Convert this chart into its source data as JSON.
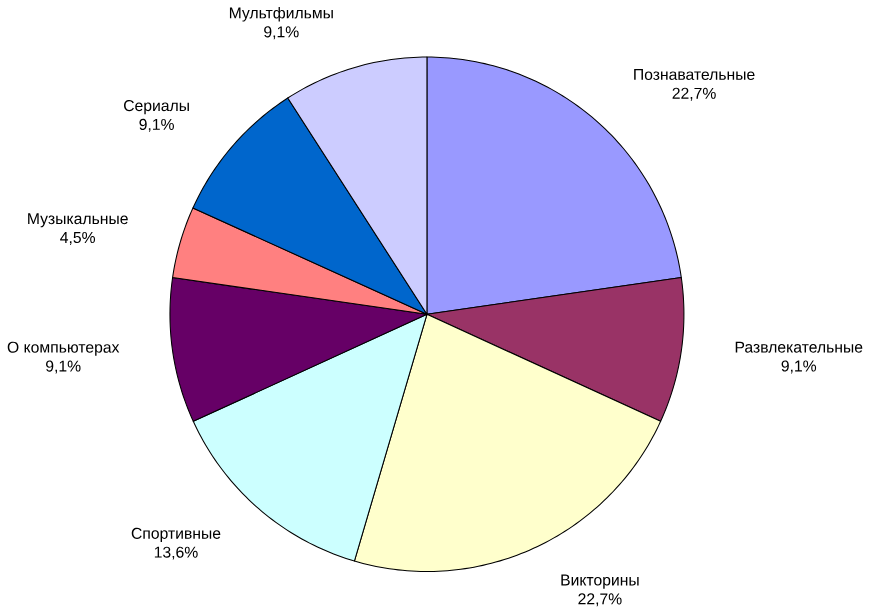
{
  "chart_data": {
    "type": "pie",
    "categories": [
      "Познавательные",
      "Развлекательные",
      "Викторины",
      "Спортивные",
      "О компьютерах",
      "Музыкальные",
      "Сериалы",
      "Мультфильмы"
    ],
    "values": [
      22.7,
      9.1,
      22.7,
      13.6,
      9.1,
      4.5,
      9.1,
      9.1
    ],
    "value_labels": [
      "22,7%",
      "9,1%",
      "22,7%",
      "13,6%",
      "9,1%",
      "4,5%",
      "9,1%",
      "9,1%"
    ],
    "colors": [
      "#9999ff",
      "#993366",
      "#ffffcc",
      "#ccffff",
      "#660066",
      "#ff8080",
      "#0066cc",
      "#ccccff"
    ]
  }
}
